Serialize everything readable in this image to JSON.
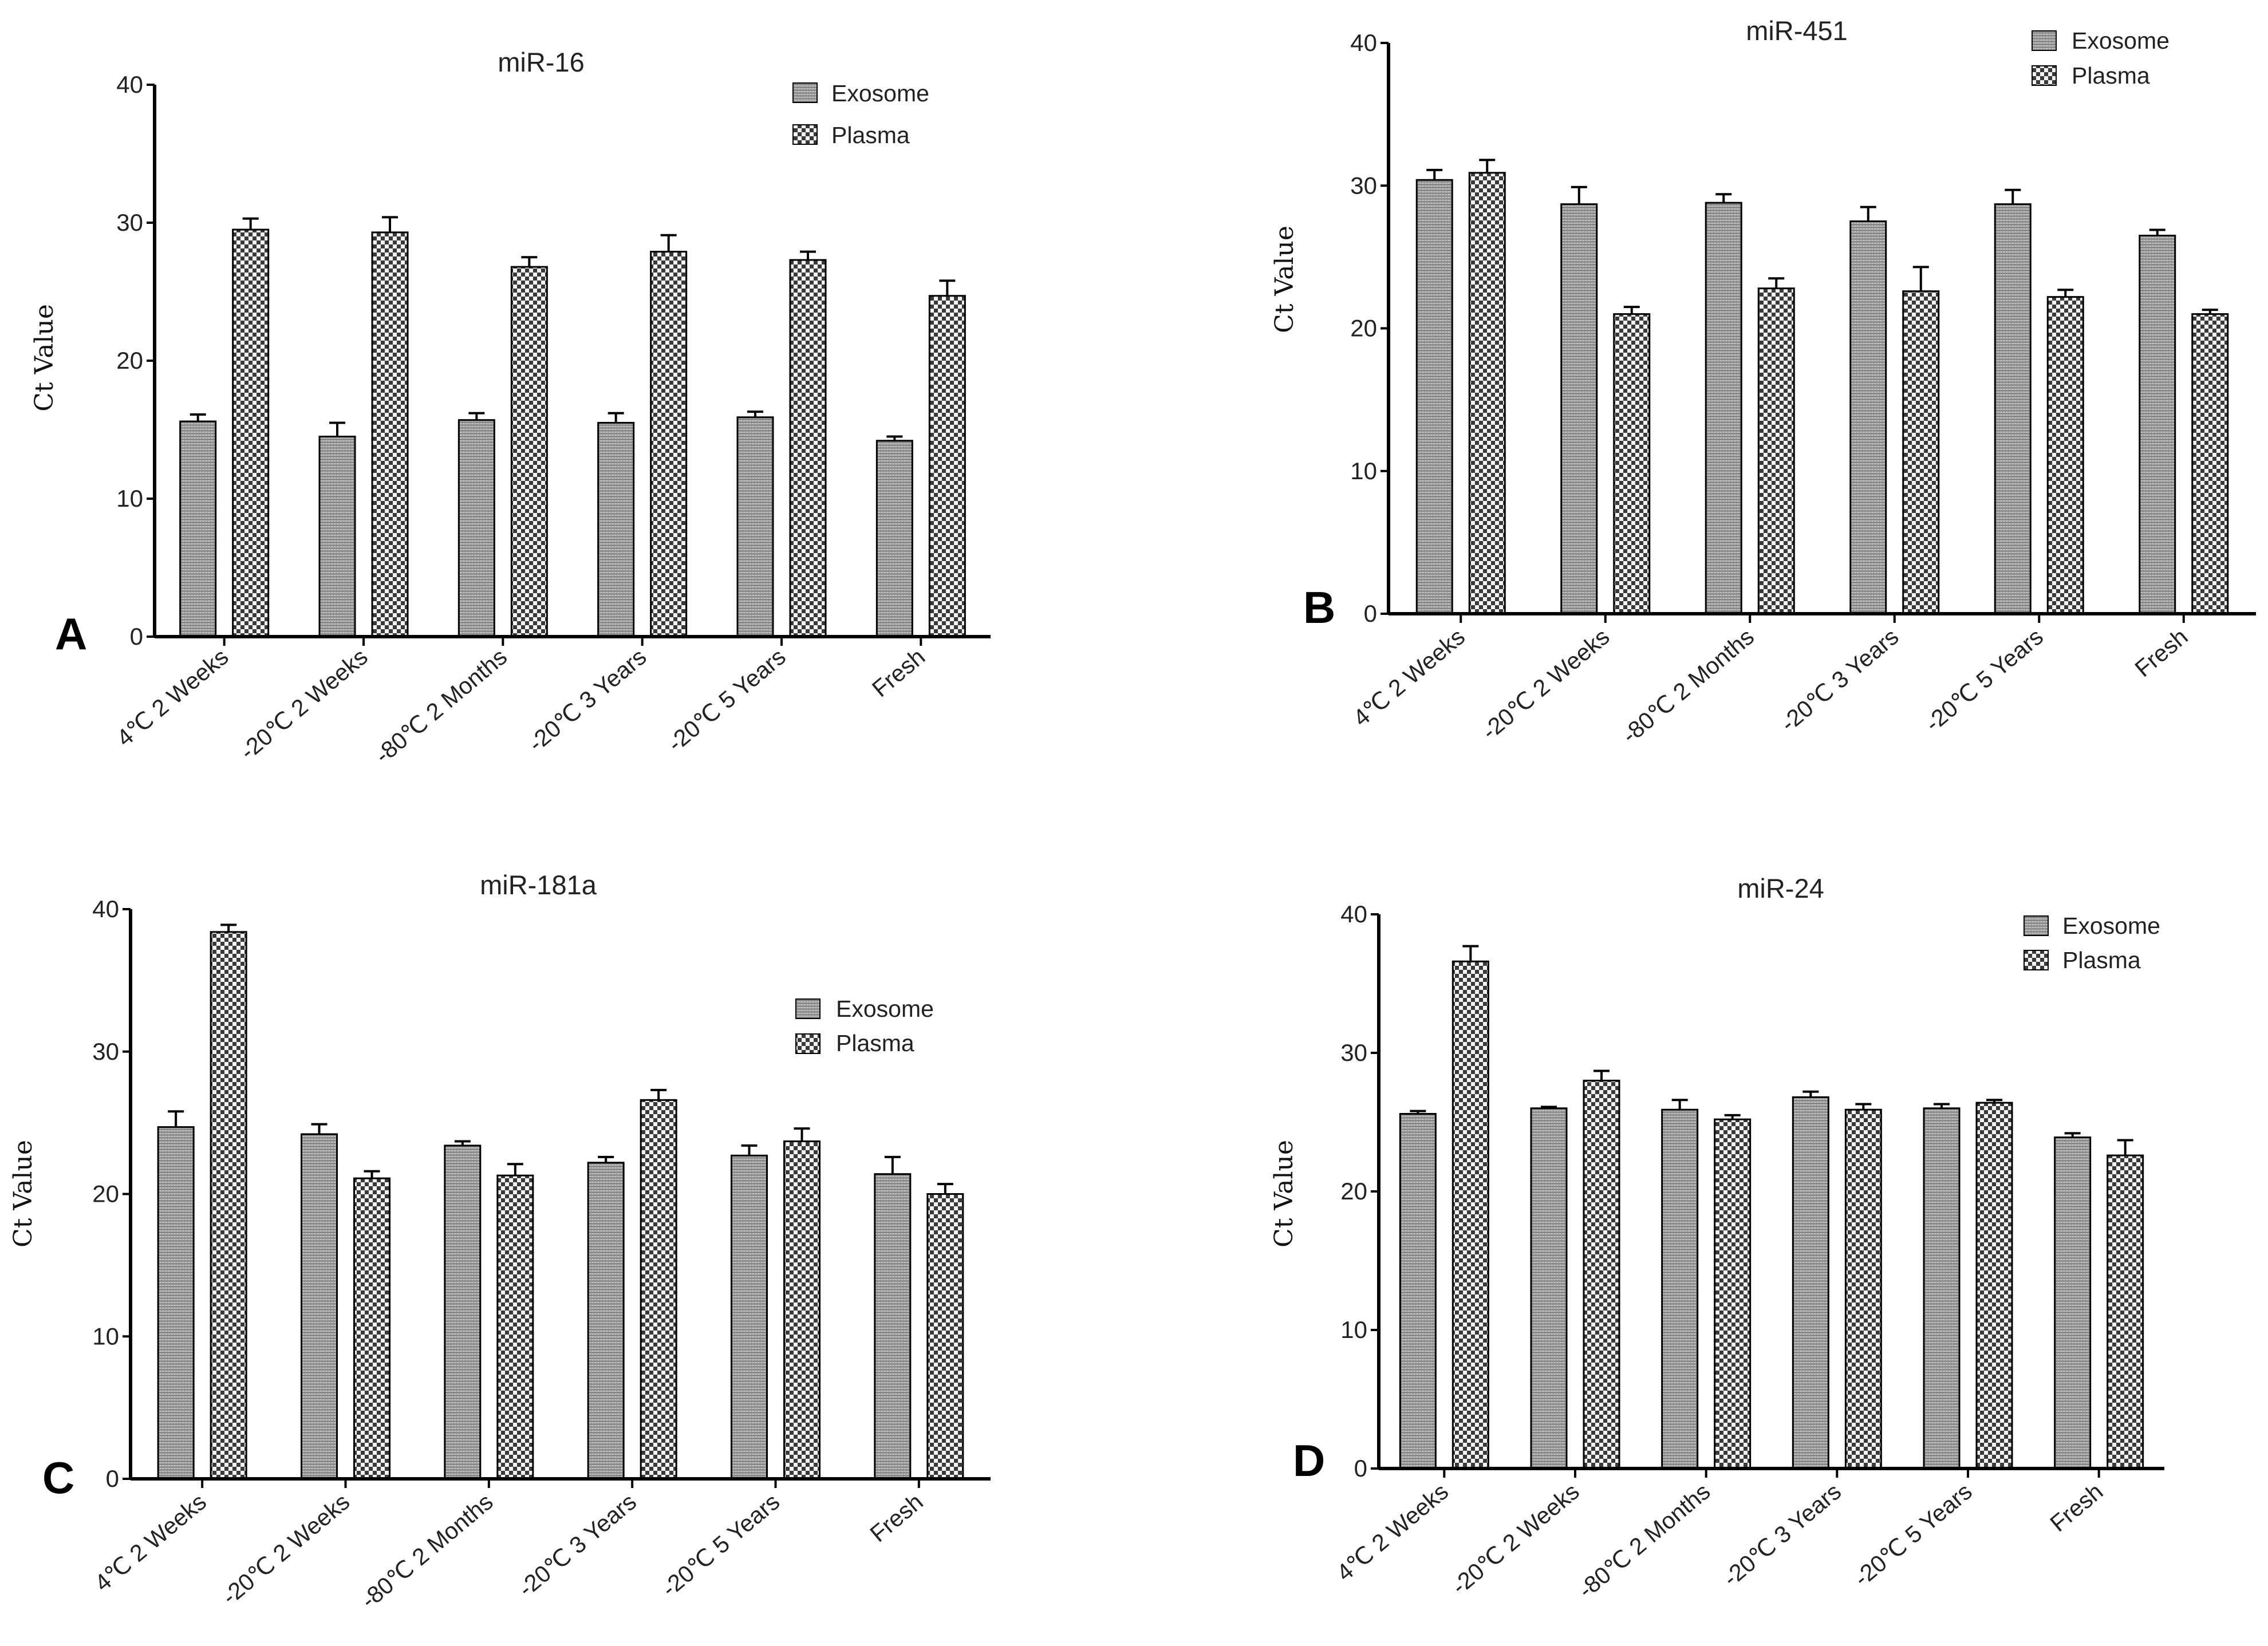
{
  "colors": {
    "exosome_fill": "#9a9a9a",
    "plasma_fill": "#4a4a4a",
    "axis": "#000000",
    "text": "#222222"
  },
  "chart_data": [
    {
      "panel": "A",
      "type": "bar",
      "title": "miR-16",
      "ylabel": "Ct Value",
      "xlabel": "",
      "ylim": [
        0,
        40
      ],
      "yticks": [
        "0",
        "10",
        "20",
        "30",
        "40"
      ],
      "legend_position": "top-right",
      "categories": [
        "4℃ 2 Weeks",
        "-20℃ 2 Weeks",
        "-80℃ 2 Months",
        "-20℃ 3 Years",
        "-20℃ 5 Years",
        "Fresh"
      ],
      "series": [
        {
          "name": "Exosome",
          "values": [
            15.6,
            14.5,
            15.7,
            15.5,
            15.9,
            14.2
          ],
          "errors": [
            0.5,
            1.0,
            0.5,
            0.7,
            0.4,
            0.3
          ]
        },
        {
          "name": "Plasma",
          "values": [
            29.5,
            29.3,
            26.8,
            27.9,
            27.3,
            24.7
          ],
          "errors": [
            0.8,
            1.1,
            0.7,
            1.2,
            0.6,
            1.1
          ]
        }
      ]
    },
    {
      "panel": "B",
      "type": "bar",
      "title": "miR-451",
      "ylabel": "Ct Value",
      "xlabel": "",
      "ylim": [
        0,
        40
      ],
      "yticks": [
        "0",
        "10",
        "20",
        "30",
        "40"
      ],
      "legend_position": "top-right",
      "categories": [
        "4℃ 2 Weeks",
        "-20℃ 2 Weeks",
        "-80℃ 2 Months",
        "-20℃ 3 Years",
        "-20℃ 5 Years",
        "Fresh"
      ],
      "series": [
        {
          "name": "Exosome",
          "values": [
            30.4,
            28.7,
            28.8,
            27.5,
            28.7,
            26.5
          ],
          "errors": [
            0.7,
            1.2,
            0.6,
            1.0,
            1.0,
            0.4
          ]
        },
        {
          "name": "Plasma",
          "values": [
            30.9,
            21.0,
            22.8,
            22.6,
            22.2,
            21.0
          ],
          "errors": [
            0.9,
            0.5,
            0.7,
            1.7,
            0.5,
            0.3
          ]
        }
      ]
    },
    {
      "panel": "C",
      "type": "bar",
      "title": "miR-181a",
      "ylabel": "Ct Value",
      "xlabel": "",
      "ylim": [
        0,
        40
      ],
      "yticks": [
        "0",
        "10",
        "20",
        "30",
        "40"
      ],
      "legend_position": "top-right",
      "categories": [
        "4℃ 2 Weeks",
        "-20℃ 2 Weeks",
        "-80℃ 2 Months",
        "-20℃ 3 Years",
        "-20℃ 5 Years",
        "Fresh"
      ],
      "series": [
        {
          "name": "Exosome",
          "values": [
            24.7,
            24.2,
            23.4,
            22.2,
            22.7,
            21.4
          ],
          "errors": [
            1.1,
            0.7,
            0.3,
            0.4,
            0.7,
            1.2
          ]
        },
        {
          "name": "Plasma",
          "values": [
            38.4,
            21.1,
            21.3,
            26.6,
            23.7,
            20.0
          ],
          "errors": [
            0.5,
            0.5,
            0.8,
            0.7,
            0.9,
            0.7
          ]
        }
      ]
    },
    {
      "panel": "D",
      "type": "bar",
      "title": "miR-24",
      "ylabel": "Ct Value",
      "xlabel": "",
      "ylim": [
        0,
        40
      ],
      "yticks": [
        "0",
        "10",
        "20",
        "30",
        "40"
      ],
      "legend_position": "top-right",
      "categories": [
        "4℃ 2 Weeks",
        "-20℃ 2 Weeks",
        "-80℃ 2 Months",
        "-20℃ 3 Years",
        "-20℃ 5 Years",
        "Fresh"
      ],
      "series": [
        {
          "name": "Exosome",
          "values": [
            25.6,
            26.0,
            25.9,
            26.8,
            26.0,
            23.9
          ],
          "errors": [
            0.2,
            0.1,
            0.7,
            0.4,
            0.3,
            0.3
          ]
        },
        {
          "name": "Plasma",
          "values": [
            36.6,
            28.0,
            25.2,
            25.9,
            26.4,
            22.6
          ],
          "errors": [
            1.1,
            0.7,
            0.3,
            0.4,
            0.2,
            1.1
          ]
        }
      ]
    }
  ]
}
